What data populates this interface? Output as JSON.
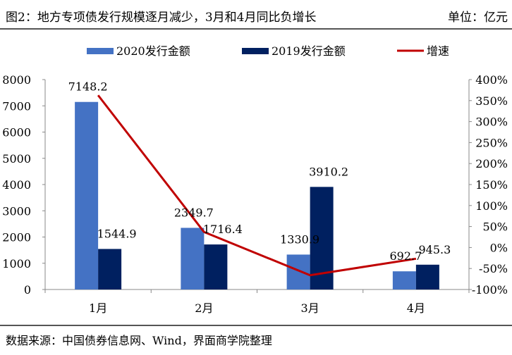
{
  "header": {
    "title": "图2：地方专项债发行规模逐月减少，3月和4月同比负增长",
    "unit": "单位：亿元"
  },
  "footer": {
    "source": "数据来源：中国债券信息网、Wind，界面商学院整理"
  },
  "colors": {
    "series_2020": "#4472c4",
    "series_2019": "#002060",
    "growth_line": "#c00000",
    "axis": "#888888"
  },
  "chart_data": {
    "type": "bar",
    "categories": [
      "1月",
      "2月",
      "3月",
      "4月"
    ],
    "series": [
      {
        "name": "2020发行金额",
        "type": "bar",
        "axis": "left",
        "values": [
          7148.2,
          2349.7,
          1330.9,
          692.7
        ]
      },
      {
        "name": "2019发行金额",
        "type": "bar",
        "axis": "left",
        "values": [
          1544.9,
          1716.4,
          3910.2,
          945.3
        ]
      },
      {
        "name": "增速",
        "type": "line",
        "axis": "right",
        "values": [
          362.7,
          36.9,
          -66.0,
          -26.7
        ]
      }
    ],
    "data_labels": {
      "s2020": [
        "7148.2",
        "2349.7",
        "1330.9",
        "692.7"
      ],
      "s2019": [
        "1544.9",
        "1716.4",
        "3910.2",
        "945.3"
      ]
    },
    "left_axis": {
      "ylim": [
        0,
        8000
      ],
      "ticks": [
        0,
        1000,
        2000,
        3000,
        4000,
        5000,
        6000,
        7000,
        8000
      ],
      "tick_labels": [
        "0",
        "1000",
        "2000",
        "3000",
        "4000",
        "5000",
        "6000",
        "7000",
        "8000"
      ]
    },
    "right_axis": {
      "ylim": [
        -100,
        400
      ],
      "ticks": [
        -100,
        -50,
        0,
        50,
        100,
        150,
        200,
        250,
        300,
        350,
        400
      ],
      "tick_labels": [
        "-100%",
        "-50%",
        "0%",
        "50%",
        "100%",
        "150%",
        "200%",
        "250%",
        "300%",
        "350%",
        "400%"
      ]
    },
    "legend": {
      "position": "top",
      "entries": [
        "2020发行金额",
        "2019发行金额",
        "增速"
      ]
    },
    "grid": false
  }
}
